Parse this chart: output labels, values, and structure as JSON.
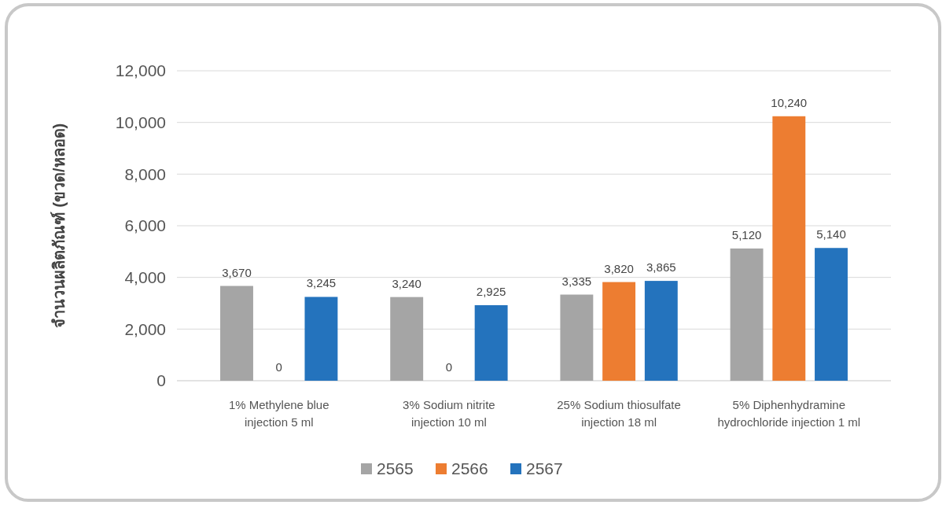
{
  "chart_data": {
    "type": "bar",
    "ylabel": "จำนวนผลิตภัณฑ์ (ขวด/หลอด)",
    "categories": [
      "1% Methylene blue\ninjection 5 ml",
      "3% Sodium nitrite\ninjection 10 ml",
      "25% Sodium thiosulfate\ninjection 18 ml",
      "5% Diphenhydramine\nhydrochloride injection 1 ml"
    ],
    "series": [
      {
        "name": "2565",
        "color": "#a5a5a5",
        "values": [
          3670,
          3240,
          3335,
          5120
        ],
        "value_labels": [
          "3,670",
          "3,240",
          "3,335",
          "5,120"
        ]
      },
      {
        "name": "2566",
        "color": "#ed7d31",
        "values": [
          0,
          0,
          3820,
          10240
        ],
        "value_labels": [
          "0",
          "0",
          "3,820",
          "10,240"
        ]
      },
      {
        "name": "2567",
        "color": "#2473bd",
        "values": [
          3245,
          2925,
          3865,
          5140
        ],
        "value_labels": [
          "3,245",
          "2,925",
          "3,865",
          "5,140"
        ]
      }
    ],
    "ylim": [
      0,
      12000
    ],
    "yticks": [
      {
        "value": 0,
        "label": "0"
      },
      {
        "value": 2000,
        "label": "2,000"
      },
      {
        "value": 4000,
        "label": "4,000"
      },
      {
        "value": 6000,
        "label": "6,000"
      },
      {
        "value": 8000,
        "label": "8,000"
      },
      {
        "value": 10000,
        "label": "10,000"
      },
      {
        "value": 12000,
        "label": "12,000"
      }
    ],
    "grid": "y",
    "legend": "bottom"
  }
}
